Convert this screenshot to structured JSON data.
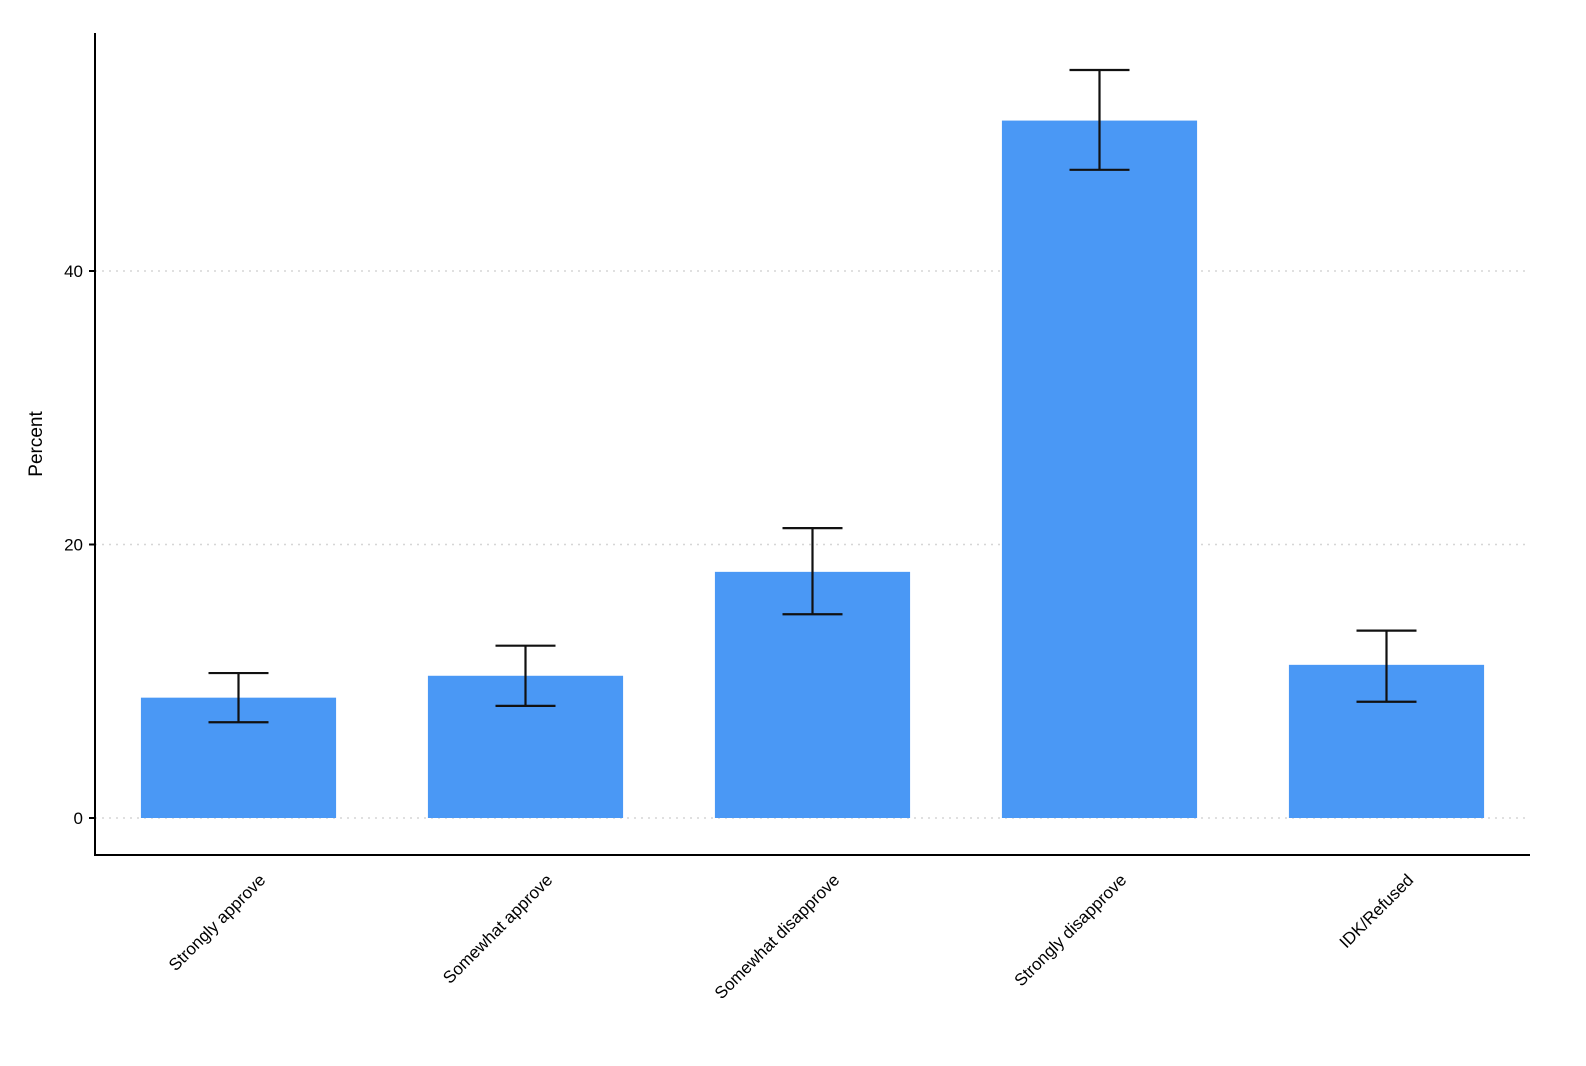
{
  "chart_data": {
    "type": "bar",
    "title": "",
    "xlabel": "",
    "ylabel": "Percent",
    "categories": [
      "Strongly approve",
      "Somewhat approve",
      "Somewhat disapprove",
      "Strongly disapprove",
      "IDK/Refused"
    ],
    "values": [
      8.8,
      10.4,
      18.0,
      51.0,
      11.2
    ],
    "error_low": [
      7.0,
      8.2,
      14.9,
      47.4,
      8.5
    ],
    "error_high": [
      10.6,
      12.6,
      21.2,
      54.7,
      13.7
    ],
    "yticks": [
      0,
      20,
      40
    ],
    "ylim": [
      0,
      57.4
    ],
    "grid": "dotted horizontal lines at y ticks",
    "legend": "none",
    "bar_color": "#4a98f5",
    "error_bar_color": "#111111",
    "axis_color": "#000000",
    "grid_color": "#d6d6d6",
    "x_label_rotation_deg": 45
  }
}
